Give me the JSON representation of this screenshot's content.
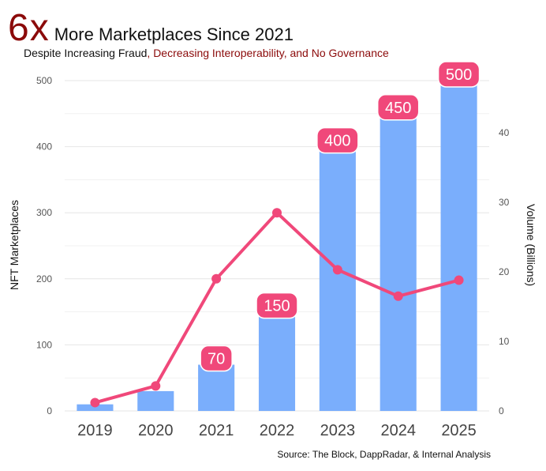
{
  "header": {
    "big": "6x",
    "main": "More Marketplaces Since 2021",
    "subtitle_a": "Despite Increasing  Fraud",
    "subtitle_b": ", Decreasing Interoperability,  and No Governance"
  },
  "source": "Source: The Block, DappRadar, & Internal Analysis",
  "colors": {
    "bar": "#7aaefc",
    "line": "#f0487a",
    "label_bg": "#f0487a"
  },
  "chart_data": {
    "type": "bar",
    "categories": [
      "2019",
      "2020",
      "2021",
      "2022",
      "2023",
      "2024",
      "2025"
    ],
    "series": [
      {
        "values": [
          10,
          30,
          70,
          150,
          400,
          450,
          500
        ],
        "axis": "left",
        "kind": "bar"
      },
      {
        "values": [
          1.2,
          3.6,
          19,
          28.5,
          20.3,
          16.5,
          18.8
        ],
        "axis": "right",
        "kind": "line"
      }
    ],
    "bar_labels": [
      "",
      "",
      "70",
      "150",
      "400",
      "450",
      "500"
    ],
    "ylabel": "NFT Marketplaces",
    "y2label": "Volume (Billions)",
    "ylim": [
      0,
      500
    ],
    "y2lim": [
      0,
      47.5
    ],
    "yticks": [
      "0",
      "100",
      "200",
      "300",
      "400",
      "500"
    ],
    "y2ticks": [
      "0",
      "10",
      "20",
      "30",
      "40"
    ],
    "grid": true
  }
}
